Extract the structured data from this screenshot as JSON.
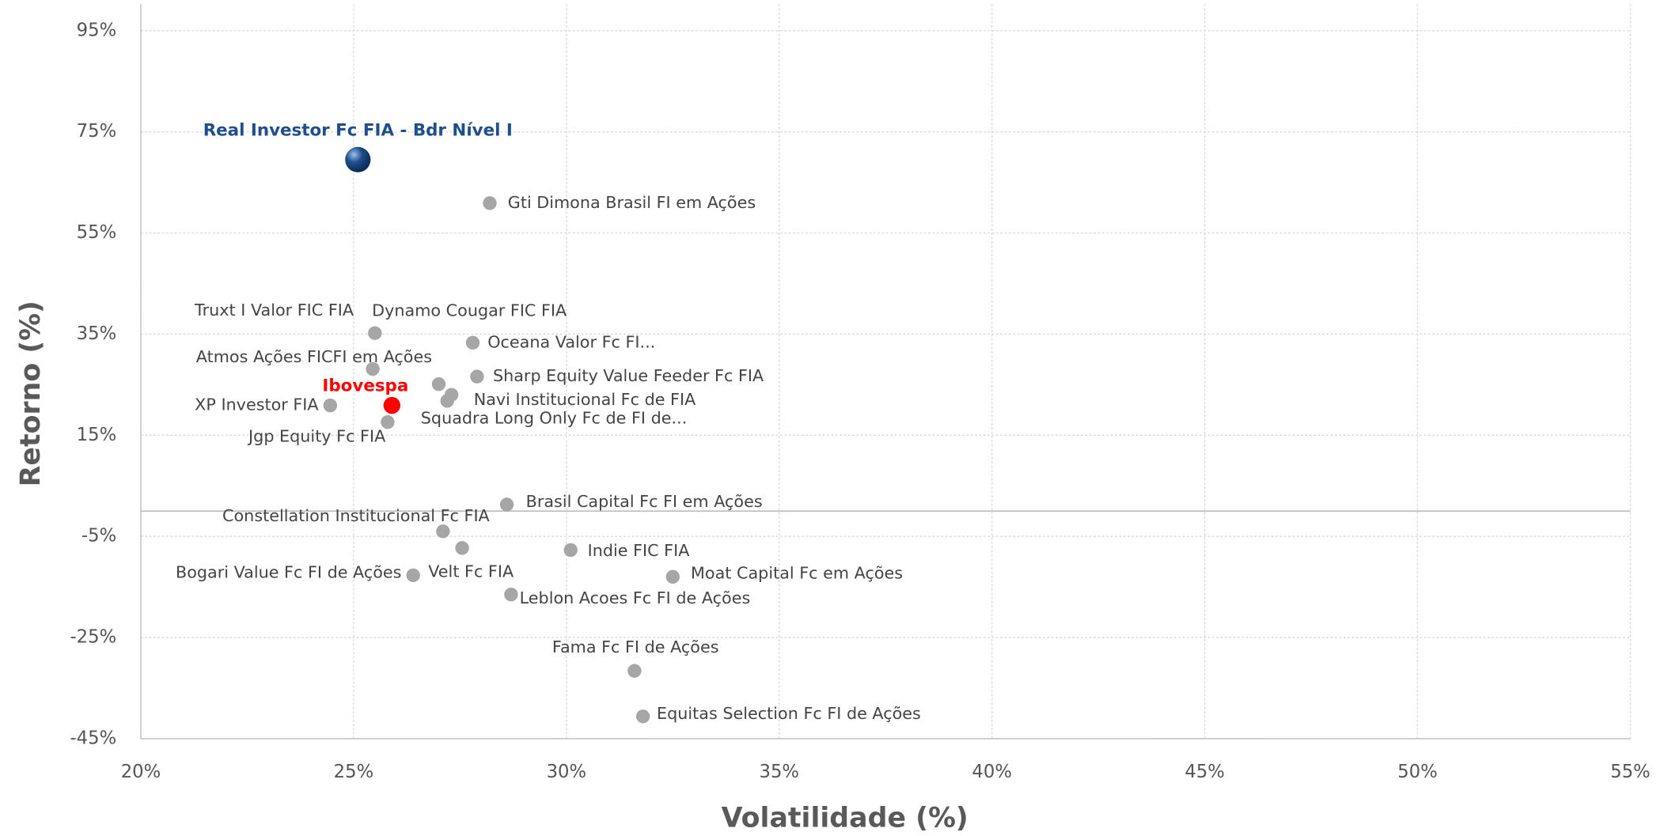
{
  "chart_data": {
    "type": "scatter",
    "xlabel": "Volatilidade (%)",
    "ylabel": "Retorno (%)",
    "xlim": [
      20,
      55
    ],
    "ylim": [
      -45,
      95
    ],
    "xticks": [
      {
        "value": 20,
        "label": "20%"
      },
      {
        "value": 25,
        "label": "25%"
      },
      {
        "value": 30,
        "label": "30%"
      },
      {
        "value": 35,
        "label": "35%"
      },
      {
        "value": 40,
        "label": "40%"
      },
      {
        "value": 45,
        "label": "45%"
      },
      {
        "value": 50,
        "label": "50%"
      },
      {
        "value": 55,
        "label": "55%"
      }
    ],
    "yticks": [
      {
        "value": -45,
        "label": "-45%"
      },
      {
        "value": -25,
        "label": "-25%"
      },
      {
        "value": -5,
        "label": "-5%"
      },
      {
        "value": 15,
        "label": "15%"
      },
      {
        "value": 35,
        "label": "35%"
      },
      {
        "value": 55,
        "label": "55%"
      },
      {
        "value": 75,
        "label": "75%"
      },
      {
        "value": 95,
        "label": "95%"
      }
    ],
    "grid": true,
    "series": [
      {
        "name": "Real Investor Fc FIA - Bdr Nível I",
        "color": "#1f4e8c",
        "x": [
          25.1
        ],
        "values": [
          69.5
        ]
      },
      {
        "name": "Gti Dimona Brasil FI em Ações",
        "color": "#a6a6a6",
        "x": [
          28.2
        ],
        "values": [
          60.9
        ]
      },
      {
        "name": "Truxt I Valor FIC FIA",
        "color": "#a6a6a6",
        "x": [
          25.5
        ],
        "values": [
          35.2
        ]
      },
      {
        "name": "Dynamo Cougar FIC FIA",
        "color": "#a6a6a6",
        "x": [
          27.0
        ],
        "values": [
          25.1
        ]
      },
      {
        "name": "Atmos Ações FICFI em Ações",
        "color": "#a6a6a6",
        "x": [
          25.45
        ],
        "values": [
          28.1
        ]
      },
      {
        "name": "Oceana Valor Fc FI...",
        "color": "#a6a6a6",
        "x": [
          27.8
        ],
        "values": [
          33.3
        ]
      },
      {
        "name": "Sharp Equity Value Feeder Fc FIA",
        "color": "#a6a6a6",
        "x": [
          27.9
        ],
        "values": [
          26.6
        ]
      },
      {
        "name": "Navi Institucional Fc de FIA",
        "color": "#a6a6a6",
        "x": [
          27.3
        ],
        "values": [
          23.0
        ]
      },
      {
        "name": "Squadra Long Only Fc de FI de...",
        "color": "#a6a6a6",
        "x": [
          27.2
        ],
        "values": [
          21.8
        ]
      },
      {
        "name": "Jgp Equity Fc FIA",
        "color": "#a6a6a6",
        "x": [
          25.8
        ],
        "values": [
          17.6
        ]
      },
      {
        "name": "XP Investor FIA",
        "color": "#a6a6a6",
        "x": [
          24.45
        ],
        "values": [
          20.9
        ]
      },
      {
        "name": "Ibovespa",
        "color": "#ff0000",
        "x": [
          25.9
        ],
        "values": [
          20.9
        ]
      },
      {
        "name": "Brasil Capital Fc FI em Ações",
        "color": "#a6a6a6",
        "x": [
          28.6
        ],
        "values": [
          1.3
        ]
      },
      {
        "name": "Constellation Institucional Fc FIA",
        "color": "#a6a6a6",
        "x": [
          27.1
        ],
        "values": [
          -4.0
        ]
      },
      {
        "name": "Velt Fc FIA",
        "color": "#a6a6a6",
        "x": [
          27.55
        ],
        "values": [
          -7.3
        ]
      },
      {
        "name": "Indie FIC FIA",
        "color": "#a6a6a6",
        "x": [
          30.1
        ],
        "values": [
          -7.7
        ]
      },
      {
        "name": "Bogari Value Fc FI de Ações",
        "color": "#a6a6a6",
        "x": [
          26.4
        ],
        "values": [
          -12.7
        ]
      },
      {
        "name": "Leblon Acoes Fc FI de Ações",
        "color": "#a6a6a6",
        "x": [
          28.7
        ],
        "values": [
          -16.5
        ]
      },
      {
        "name": "Moat Capital Fc em Ações",
        "color": "#a6a6a6",
        "x": [
          32.5
        ],
        "values": [
          -13.0
        ]
      },
      {
        "name": "Fama Fc FI de Ações",
        "color": "#a6a6a6",
        "x": [
          31.6
        ],
        "values": [
          -31.6
        ]
      },
      {
        "name": "Equitas Selection Fc FI de Ações",
        "color": "#a6a6a6",
        "x": [
          31.8
        ],
        "values": [
          -40.6
        ]
      }
    ]
  }
}
